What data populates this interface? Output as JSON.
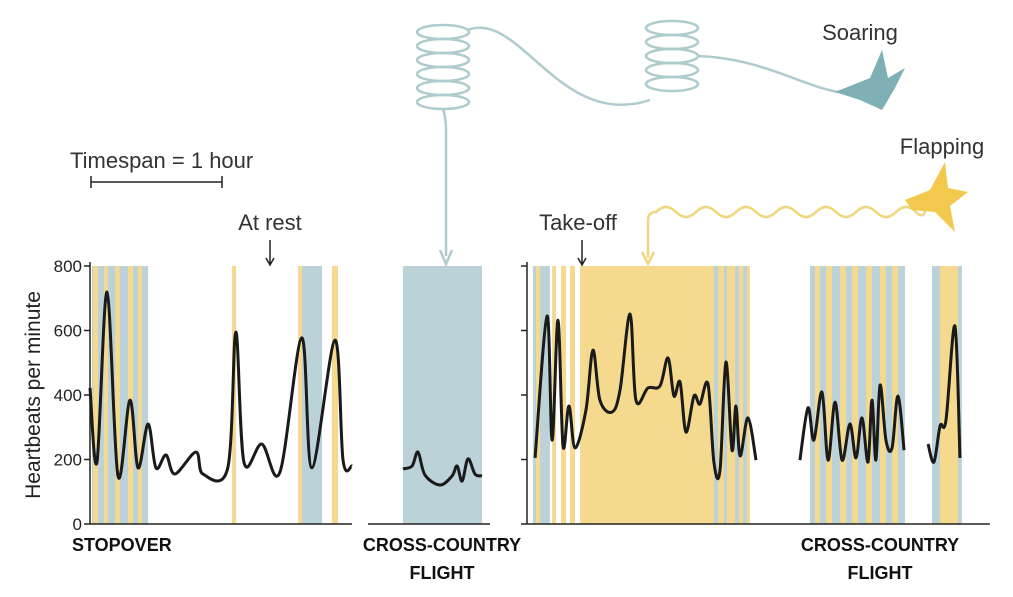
{
  "chart_data": [
    {
      "type": "line",
      "ylabel": "Heartbeats per minute",
      "ylim": [
        0,
        800
      ],
      "yticks": [
        0,
        200,
        400,
        600,
        800
      ],
      "xlim": [
        0,
        120
      ],
      "label": [
        "STOPOVER"
      ],
      "bands": [
        {
          "start": 0.9,
          "end": 26.6,
          "color": "#bcd2d9"
        },
        {
          "start": 1.4,
          "end": 3.7,
          "color": "#f4d98e"
        },
        {
          "start": 6.4,
          "end": 8.2,
          "color": "#f4d98e"
        },
        {
          "start": 11.5,
          "end": 13.7,
          "color": "#f4d98e"
        },
        {
          "start": 17.4,
          "end": 19.7,
          "color": "#f4d98e"
        },
        {
          "start": 22,
          "end": 23.8,
          "color": "#f4d98e"
        },
        {
          "start": 65,
          "end": 66.9,
          "color": "#f4d98e"
        },
        {
          "start": 95.3,
          "end": 97.1,
          "color": "#f4d98e"
        },
        {
          "start": 97.1,
          "end": 106.3,
          "color": "#bcd2d9"
        },
        {
          "start": 110.8,
          "end": 113.6,
          "color": "#f4d98e"
        }
      ],
      "series": [
        {
          "color": "#1a1a1a",
          "x": [
            0,
            3.2,
            7.8,
            12.8,
            18.3,
            22,
            26.6,
            30.2,
            34.8,
            38.9,
            48.5,
            51.7,
            63.1,
            66.8,
            70.5,
            78.7,
            87,
            97,
            101.6,
            112.2,
            115.9,
            120
          ],
          "values": [
            422,
            192,
            719,
            149,
            384,
            174,
            310,
            174,
            214,
            155,
            223,
            155,
            174,
            595,
            192,
            248,
            161,
            577,
            174,
            570,
            198,
            180
          ]
        }
      ]
    },
    {
      "type": "line",
      "xlim": [
        0,
        55.9
      ],
      "label": [
        "CROSS-COUNTRY",
        "FLIGHT"
      ],
      "bands": [
        {
          "start": 16,
          "end": 52.2,
          "color": "#bcd2d9"
        }
      ],
      "series": [
        {
          "color": "#1a1a1a",
          "x": [
            16,
            20.2,
            22.9,
            26.1,
            33,
            38.5,
            40.8,
            43.1,
            45.8,
            49,
            52.2
          ],
          "values": [
            171,
            180,
            223,
            152,
            121,
            149,
            180,
            133,
            202,
            155,
            149
          ]
        }
      ]
    },
    {
      "type": "line",
      "xlim": [
        0,
        212
      ],
      "label": [
        "CROSS-COUNTRY",
        "FLIGHT"
      ],
      "bands": [
        {
          "start": 2.7,
          "end": 10.5,
          "color": "#bcd2d9"
        },
        {
          "start": 4.1,
          "end": 6,
          "color": "#f4d98e"
        },
        {
          "start": 11.5,
          "end": 13.3,
          "color": "#f4d98e"
        },
        {
          "start": 15.6,
          "end": 17.9,
          "color": "#f4d98e"
        },
        {
          "start": 19.7,
          "end": 22,
          "color": "#f4d98e"
        },
        {
          "start": 24.3,
          "end": 102.1,
          "color": "#f4d98e"
        },
        {
          "start": 85.6,
          "end": 87.5,
          "color": "#bcd2d9"
        },
        {
          "start": 90.2,
          "end": 91.6,
          "color": "#bcd2d9"
        },
        {
          "start": 95.3,
          "end": 97.1,
          "color": "#bcd2d9"
        },
        {
          "start": 99,
          "end": 100.8,
          "color": "#bcd2d9"
        },
        {
          "start": 129.6,
          "end": 173.1,
          "color": "#bcd2d9"
        },
        {
          "start": 131.9,
          "end": 134.2,
          "color": "#f4d98e"
        },
        {
          "start": 137,
          "end": 139.7,
          "color": "#f4d98e"
        },
        {
          "start": 143.4,
          "end": 146.1,
          "color": "#f4d98e"
        },
        {
          "start": 148.9,
          "end": 151.6,
          "color": "#f4d98e"
        },
        {
          "start": 155.3,
          "end": 158,
          "color": "#f4d98e"
        },
        {
          "start": 161.7,
          "end": 164.4,
          "color": "#f4d98e"
        },
        {
          "start": 167.2,
          "end": 169.9,
          "color": "#f4d98e"
        },
        {
          "start": 185.5,
          "end": 199.2,
          "color": "#bcd2d9"
        },
        {
          "start": 189.2,
          "end": 197.4,
          "color": "#f4d98e"
        }
      ],
      "series": [
        {
          "color": "#1a1a1a",
          "x": [
            3.7,
            9.2,
            11.5,
            14.2,
            16.5,
            19.2,
            22,
            27,
            30.2,
            33.4,
            38.9,
            42.6,
            47.2,
            49.9,
            55.4,
            60.9,
            64.6,
            67.3,
            70.1,
            72.8,
            76.5,
            79.2,
            82.9,
            85.6,
            88.4,
            91.1,
            93.9,
            95.7,
            97.6,
            101.2,
            104.9,
            115.9,
            125,
            128.7,
            131.4,
            135.1,
            137.9,
            141.1,
            144.3,
            147.9,
            150.7,
            153.4,
            156.2,
            158,
            159.8,
            161.7,
            164.4,
            167.2,
            169.9,
            172.7,
            178.2,
            183.7,
            186.4,
            189.2,
            191.9,
            196,
            198.3
          ],
          "values": [
            205,
            645,
            260,
            632,
            242,
            366,
            236,
            353,
            539,
            384,
            347,
            415,
            651,
            384,
            422,
            428,
            515,
            397,
            440,
            285,
            397,
            372,
            434,
            192,
            167,
            502,
            229,
            366,
            211,
            329,
            198,
            null,
            198,
            360,
            260,
            409,
            198,
            378,
            198,
            310,
            205,
            329,
            192,
            384,
            198,
            431,
            260,
            236,
            397,
            229,
            null,
            248,
            192,
            304,
            322,
            614,
            205
          ]
        }
      ]
    }
  ],
  "annotations": {
    "timespan": {
      "label": "Timespan = 1 hour",
      "minutes": 60
    },
    "at_rest": "At rest",
    "take_off": "Take-off",
    "soaring": "Soaring",
    "flapping": "Flapping"
  }
}
